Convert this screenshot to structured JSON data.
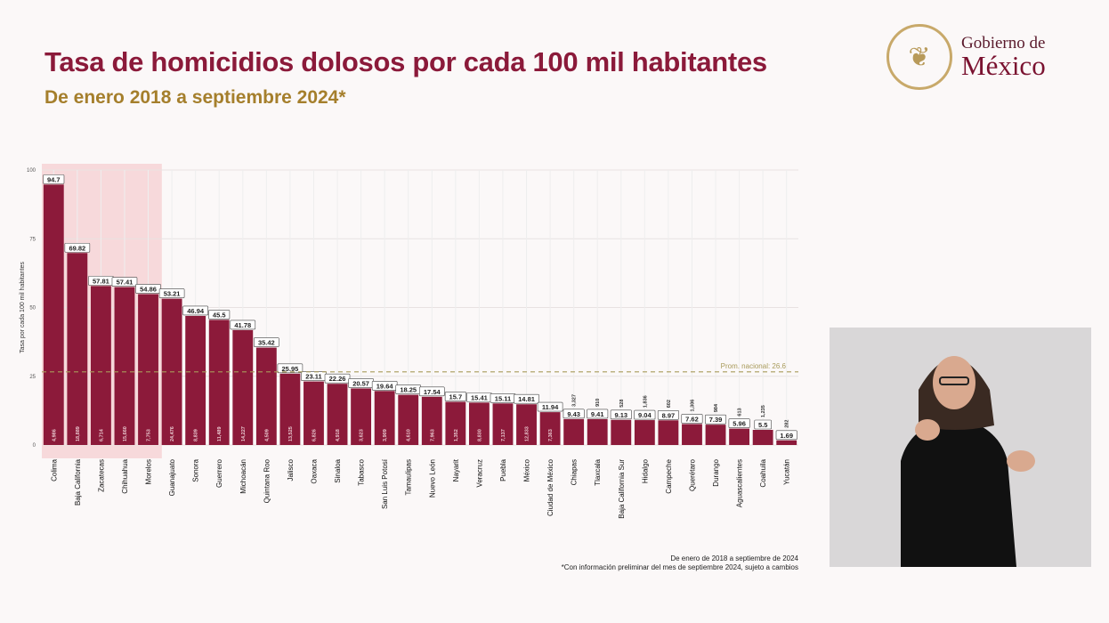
{
  "header": {
    "title": "Tasa de homicidios dolosos por cada 100 mil habitantes",
    "subtitle": "De enero 2018 a septiembre 2024*"
  },
  "logo": {
    "line1": "Gobierno de",
    "line2": "México"
  },
  "footnote": {
    "line1": "De enero de 2018 a septiembre de 2024",
    "line2": "*Con información preliminar del mes de septiembre 2024, sujeto a cambios"
  },
  "colors": {
    "bar": "#8c1a3a",
    "highlight": "#f6d3d6",
    "average_line": "#a89a5a"
  },
  "chart_data": {
    "type": "bar",
    "title": "",
    "xlabel": "",
    "ylabel": "Tasa por cada 100 mil habitantes",
    "ylim": [
      0,
      100
    ],
    "yticks": [
      0,
      25,
      50,
      75,
      100
    ],
    "grid": true,
    "highlighted_categories": [
      "Colima",
      "Baja California",
      "Zacatecas",
      "Chihuahua",
      "Morelos"
    ],
    "reference_line": {
      "value": 26.6,
      "label": "Prom. nacional: 26.6"
    },
    "categories": [
      "Colima",
      "Baja California",
      "Zacatecas",
      "Chihuahua",
      "Morelos",
      "Guanajuato",
      "Sonora",
      "Guerrero",
      "Michoacán",
      "Quintana Roo",
      "Jalisco",
      "Oaxaca",
      "Sinaloa",
      "Tabasco",
      "San Luis Potosí",
      "Tamaulipas",
      "Nuevo León",
      "Nayarit",
      "Veracruz",
      "Puebla",
      "México",
      "Ciudad de México",
      "Chiapas",
      "Tlaxcala",
      "Baja California Sur",
      "Hidalgo",
      "Campeche",
      "Querétaro",
      "Durango",
      "Aguascalientes",
      "Coahuila",
      "Yucatán"
    ],
    "values": [
      94.7,
      69.82,
      57.81,
      57.41,
      54.86,
      53.21,
      46.94,
      45.5,
      41.78,
      35.42,
      25.95,
      23.11,
      22.26,
      20.57,
      19.64,
      18.25,
      17.54,
      15.7,
      15.41,
      15.11,
      14.81,
      11.94,
      9.43,
      9.41,
      9.13,
      9.04,
      8.97,
      7.62,
      7.39,
      5.96,
      5.5,
      1.69
    ],
    "counts": [
      "4,986",
      "18,889",
      "6,714",
      "15,660",
      "7,753",
      "24,476",
      "8,839",
      "11,489",
      "14,227",
      "4,509",
      "13,525",
      "6,826",
      "4,918",
      "3,623",
      "3,909",
      "4,610",
      "7,963",
      "1,352",
      "8,830",
      "7,137",
      "12,833",
      "7,363",
      "3,327",
      "910",
      "528",
      "1,836",
      "602",
      "1,306",
      "984",
      "613",
      "1,235",
      "282"
    ]
  }
}
